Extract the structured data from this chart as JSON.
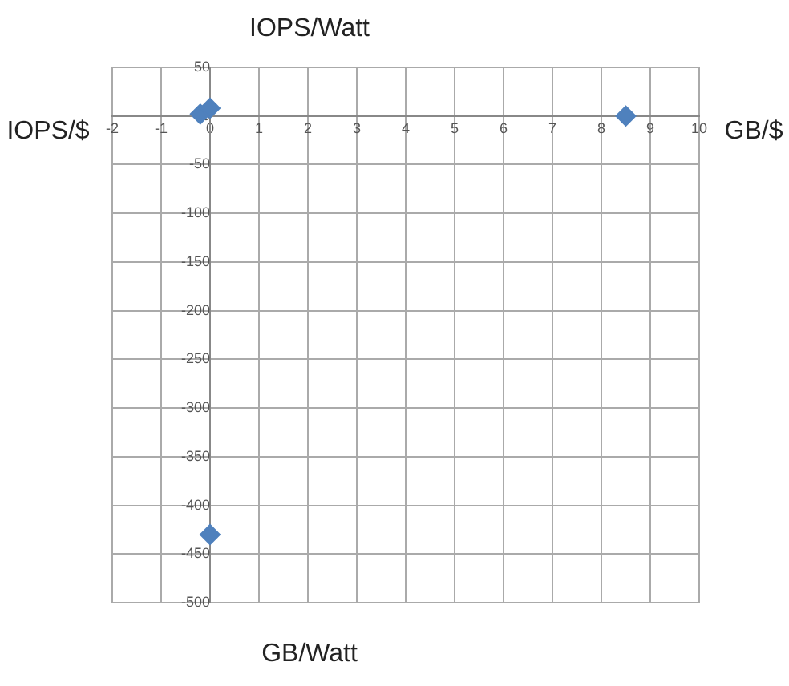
{
  "chart_data": {
    "type": "scatter",
    "annotations": [
      "IOPS/Watt",
      "GB/Watt",
      "IOPS/$",
      "GB/$"
    ],
    "series": [
      {
        "color": "#4f81bd",
        "x": [
          -0.2,
          0,
          8.5,
          0
        ],
        "values": [
          2,
          8,
          0,
          -430
        ]
      }
    ],
    "xlim": [
      -2,
      10
    ],
    "xticks": [
      -2,
      -1,
      0,
      1,
      2,
      3,
      4,
      5,
      6,
      7,
      8,
      9,
      10
    ],
    "ylim": [
      -500,
      50
    ],
    "yticks": [
      50,
      0,
      -50,
      -100,
      -150,
      -200,
      -250,
      -300,
      -350,
      -400,
      -450,
      -500
    ],
    "grid": true,
    "marker": "diamond",
    "legend": false
  }
}
